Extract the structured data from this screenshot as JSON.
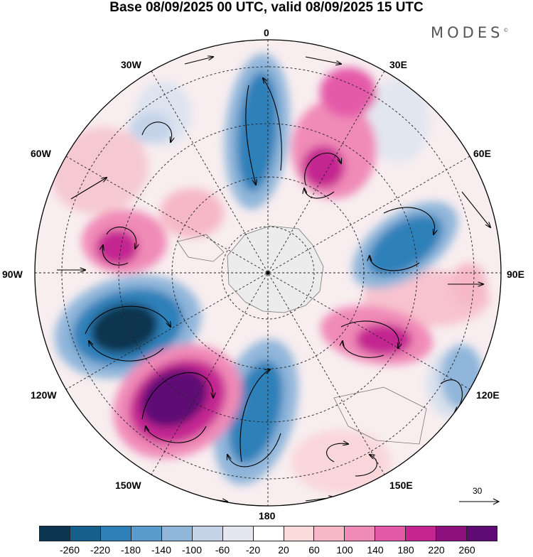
{
  "title": "Base 08/09/2025 00 UTC, valid 08/09/2025 15 UTC",
  "brand": {
    "name": "MODES",
    "mark": "©"
  },
  "labels": {
    "n0": "0",
    "n30e": "30E",
    "n60e": "60E",
    "n90e": "90E",
    "n120e": "120E",
    "n150e": "150E",
    "n180": "180",
    "n150w": "150W",
    "n120w": "120W",
    "n90w": "90W",
    "n60w": "60W",
    "n30w": "30W"
  },
  "reference_vector": {
    "value": "30"
  },
  "colorbar": {
    "colors": [
      "#0b3550",
      "#155f8c",
      "#2f80b9",
      "#5a9bcb",
      "#90b6da",
      "#c4d3e8",
      "#e6e6f1",
      "#ffffff",
      "#fbdcdc",
      "#f6b8c6",
      "#f08ab7",
      "#e45aa8",
      "#c42591",
      "#8f117f",
      "#5e0c74"
    ],
    "ticks": [
      "-260",
      "-220",
      "-180",
      "-140",
      "-100",
      "-60",
      "-20",
      "20",
      "60",
      "100",
      "140",
      "180",
      "220",
      "260"
    ]
  },
  "anomaly_centers": [
    {
      "name": "polar-low-130W",
      "value": -250
    },
    {
      "name": "polar-low-60E",
      "value": -190
    },
    {
      "name": "polar-low-10W",
      "value": -170
    },
    {
      "name": "polar-low-165W",
      "value": -160
    },
    {
      "name": "polar-high-140W",
      "value": 260
    },
    {
      "name": "polar-high-15E",
      "value": 190
    },
    {
      "name": "polar-high-30E",
      "value": 170
    },
    {
      "name": "polar-high-105E",
      "value": 180
    },
    {
      "name": "polar-high-75W",
      "value": 170
    }
  ]
}
